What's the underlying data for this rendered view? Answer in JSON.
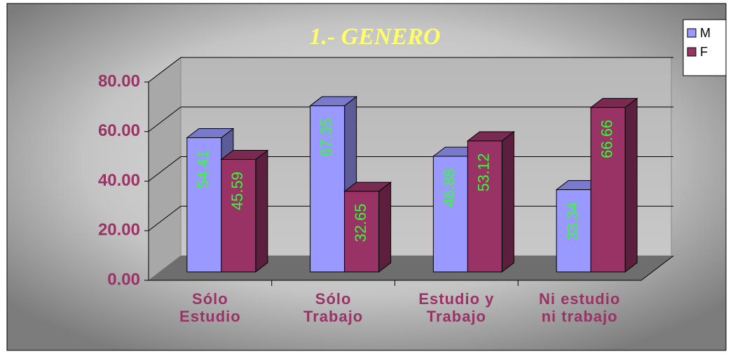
{
  "chart_data": {
    "type": "bar",
    "title": "1.- GENERO",
    "categories": [
      "Sólo Estudio",
      "Sólo Trabajo",
      "Estudio y Trabajo",
      "Ni estudio ni trabajo"
    ],
    "series": [
      {
        "name": "M",
        "color": "#9999ff",
        "values": [
          54.41,
          67.35,
          46.88,
          33.34
        ]
      },
      {
        "name": "F",
        "color": "#993366",
        "values": [
          45.59,
          32.65,
          53.12,
          66.66
        ]
      }
    ],
    "ylim": [
      0,
      80
    ],
    "yticks": [
      {
        "value": 0,
        "label": "0.00"
      },
      {
        "value": 20,
        "label": "20.00"
      },
      {
        "value": 40,
        "label": "40.00"
      },
      {
        "value": 60,
        "label": "60.00"
      },
      {
        "value": 80,
        "label": "80.00"
      }
    ],
    "grid": true,
    "legend": "right"
  }
}
